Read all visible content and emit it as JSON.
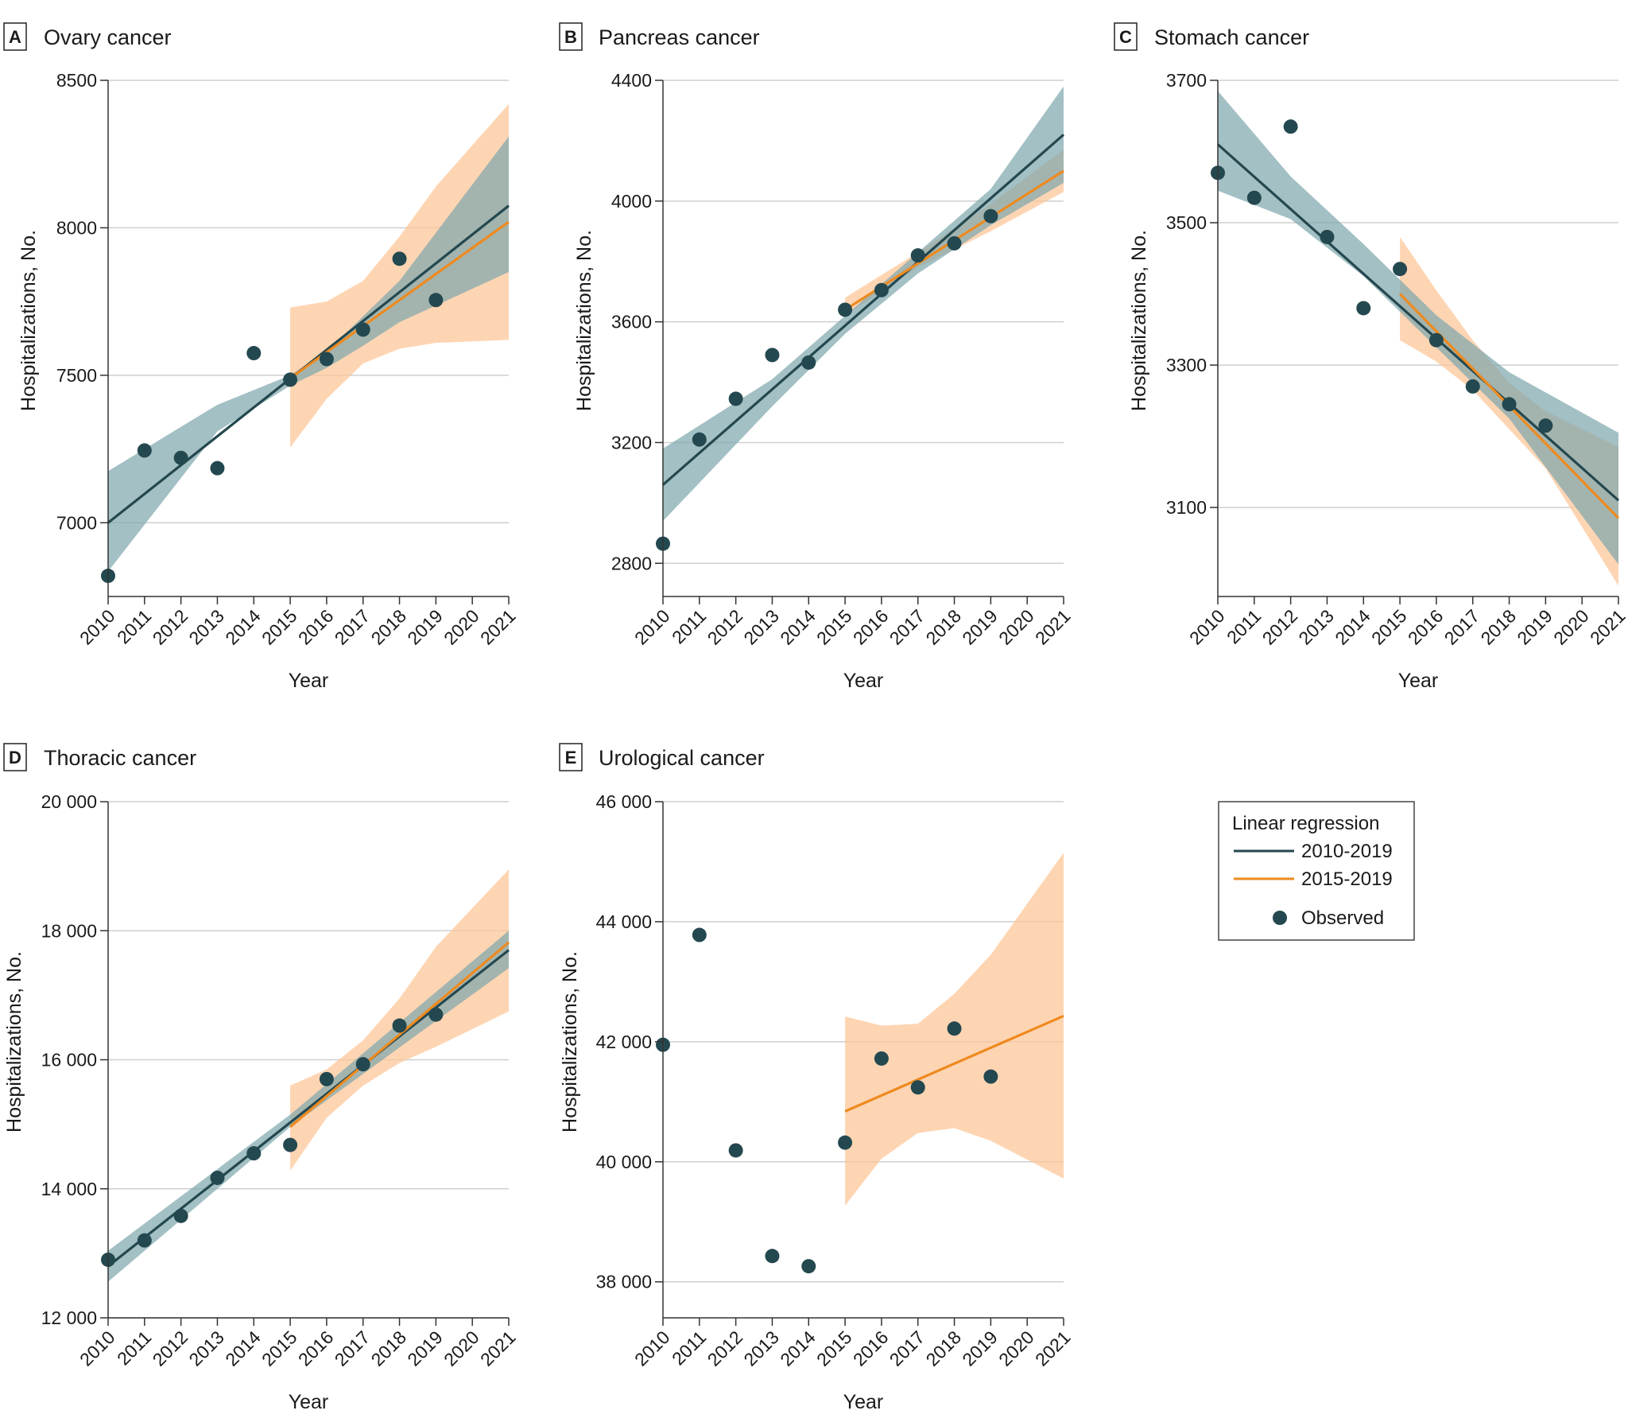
{
  "colors": {
    "line_2010_2019": "#24484f",
    "line_2015_2019": "#ee8a1f",
    "band_2010_2019": "#7fa7ad",
    "band_2015_2019": "#fdc596",
    "grid": "#cfcfcf",
    "axis": "#333333"
  },
  "legend": {
    "title": "Linear regression",
    "item_1": "2010-2019",
    "item_2": "2015-2019",
    "item_3": "Observed"
  },
  "chart_data": [
    {
      "id": "A",
      "type": "scatter",
      "title": "Ovary cancer",
      "xlabel": "Year",
      "ylabel": "Hospitalizations, No.",
      "xlim": [
        2010,
        2021
      ],
      "ylim": [
        6750,
        8500
      ],
      "yticks": [
        7000,
        7500,
        8000,
        8500
      ],
      "ytick_labels": [
        "7000",
        "7500",
        "8000",
        "8500"
      ],
      "xtick_labels": [
        "2010",
        "2011",
        "2012",
        "2013",
        "2014",
        "2015",
        "2016",
        "2017",
        "2018",
        "2019",
        "2020",
        "2021"
      ],
      "observed": {
        "x": [
          2010,
          2011,
          2012,
          2013,
          2014,
          2015,
          2016,
          2017,
          2018,
          2019
        ],
        "y": [
          6820,
          7245,
          7220,
          7185,
          7575,
          7485,
          7555,
          7655,
          7895,
          7755
        ]
      },
      "fit_2010_2019": {
        "start": [
          2010,
          7000
        ],
        "end": [
          2021,
          8075
        ]
      },
      "ci_2010_2019": {
        "x": [
          2010,
          2013,
          2015,
          2016,
          2017,
          2018,
          2021
        ],
        "lower": [
          6835,
          7310,
          7465,
          7525,
          7600,
          7680,
          7850
        ],
        "upper": [
          7175,
          7400,
          7500,
          7580,
          7700,
          7820,
          8310
        ]
      },
      "fit_2015_2019": {
        "start": [
          2015,
          7490
        ],
        "end": [
          2021,
          8020
        ]
      },
      "ci_2015_2019": {
        "x": [
          2015,
          2016,
          2017,
          2018,
          2019,
          2021
        ],
        "lower": [
          7255,
          7420,
          7540,
          7590,
          7610,
          7620
        ],
        "upper": [
          7730,
          7750,
          7820,
          7970,
          8140,
          8420
        ]
      }
    },
    {
      "id": "B",
      "type": "scatter",
      "title": "Pancreas cancer",
      "xlabel": "Year",
      "ylabel": "Hospitalizations, No.",
      "xlim": [
        2010,
        2021
      ],
      "ylim": [
        2690,
        4400
      ],
      "yticks": [
        2800,
        3200,
        3600,
        4000,
        4400
      ],
      "ytick_labels": [
        "2800",
        "3200",
        "3600",
        "4000",
        "4400"
      ],
      "xtick_labels": [
        "2010",
        "2011",
        "2012",
        "2013",
        "2014",
        "2015",
        "2016",
        "2017",
        "2018",
        "2019",
        "2020",
        "2021"
      ],
      "observed": {
        "x": [
          2010,
          2011,
          2012,
          2013,
          2014,
          2015,
          2016,
          2017,
          2018,
          2019
        ],
        "y": [
          2865,
          3210,
          3345,
          3490,
          3465,
          3640,
          3705,
          3820,
          3860,
          3950
        ]
      },
      "fit_2010_2019": {
        "start": [
          2010,
          3060
        ],
        "end": [
          2021,
          4220
        ]
      },
      "ci_2010_2019": {
        "x": [
          2010,
          2013,
          2015,
          2017,
          2019,
          2021
        ],
        "lower": [
          2940,
          3320,
          3560,
          3760,
          3920,
          4060
        ],
        "upper": [
          3180,
          3410,
          3620,
          3830,
          4040,
          4380
        ]
      },
      "fit_2015_2019": {
        "start": [
          2015,
          3640
        ],
        "end": [
          2021,
          4100
        ]
      },
      "ci_2015_2019": {
        "x": [
          2015,
          2017,
          2019,
          2021
        ],
        "lower": [
          3620,
          3780,
          3900,
          4030
        ],
        "upper": [
          3680,
          3830,
          3990,
          4170
        ]
      }
    },
    {
      "id": "C",
      "type": "scatter",
      "title": "Stomach cancer",
      "xlabel": "Year",
      "ylabel": "Hospitalizations, No.",
      "xlim": [
        2010,
        2021
      ],
      "ylim": [
        2975,
        3700
      ],
      "yticks": [
        3100,
        3300,
        3500,
        3700
      ],
      "ytick_labels": [
        "3100",
        "3300",
        "3500",
        "3700"
      ],
      "xtick_labels": [
        "2010",
        "2011",
        "2012",
        "2013",
        "2014",
        "2015",
        "2016",
        "2017",
        "2018",
        "2019",
        "2020",
        "2021"
      ],
      "observed": {
        "x": [
          2010,
          2011,
          2012,
          2013,
          2014,
          2015,
          2016,
          2017,
          2018,
          2019
        ],
        "y": [
          3570,
          3535,
          3635,
          3480,
          3380,
          3435,
          3335,
          3270,
          3245,
          3215
        ]
      },
      "fit_2010_2019": {
        "start": [
          2010,
          3610
        ],
        "end": [
          2021,
          3110
        ]
      },
      "ci_2010_2019": {
        "x": [
          2010,
          2012,
          2014,
          2016,
          2018,
          2021
        ],
        "lower": [
          3545,
          3505,
          3425,
          3325,
          3225,
          3020
        ],
        "upper": [
          3685,
          3565,
          3470,
          3370,
          3290,
          3205
        ]
      },
      "fit_2015_2019": {
        "start": [
          2015,
          3400
        ],
        "end": [
          2021,
          3085
        ]
      },
      "ci_2015_2019": {
        "x": [
          2015,
          2016,
          2017,
          2018,
          2019,
          2021
        ],
        "lower": [
          3335,
          3305,
          3265,
          3210,
          3155,
          2990
        ],
        "upper": [
          3480,
          3405,
          3335,
          3275,
          3235,
          3185
        ]
      }
    },
    {
      "id": "D",
      "type": "scatter",
      "title": "Thoracic cancer",
      "xlabel": "Year",
      "ylabel": "Hospitalizations, No.",
      "xlim": [
        2010,
        2021
      ],
      "ylim": [
        12000,
        20000
      ],
      "yticks": [
        12000,
        14000,
        16000,
        18000,
        20000
      ],
      "ytick_labels": [
        "12 000",
        "14 000",
        "16 000",
        "18 000",
        "20 000"
      ],
      "xtick_labels": [
        "2010",
        "2011",
        "2012",
        "2013",
        "2014",
        "2015",
        "2016",
        "2017",
        "2018",
        "2019",
        "2020",
        "2021"
      ],
      "observed": {
        "x": [
          2010,
          2011,
          2012,
          2013,
          2014,
          2015,
          2016,
          2017,
          2018,
          2019
        ],
        "y": [
          12900,
          13200,
          13580,
          14170,
          14550,
          14680,
          15700,
          15930,
          16530,
          16700
        ]
      },
      "fit_2010_2019": {
        "start": [
          2010,
          12800
        ],
        "end": [
          2021,
          17700
        ]
      },
      "ci_2010_2019": {
        "x": [
          2010,
          2015,
          2021
        ],
        "lower": [
          12560,
          14960,
          17420
        ],
        "upper": [
          13040,
          15150,
          18000
        ]
      },
      "fit_2015_2019": {
        "start": [
          2015,
          14960
        ],
        "end": [
          2021,
          17820
        ]
      },
      "ci_2015_2019": {
        "x": [
          2015,
          2016,
          2017,
          2018,
          2019,
          2021
        ],
        "lower": [
          14280,
          15100,
          15600,
          15950,
          16200,
          16750
        ],
        "upper": [
          15600,
          15850,
          16300,
          16950,
          17750,
          18950
        ]
      }
    },
    {
      "id": "E",
      "type": "scatter",
      "title": "Urological cancer",
      "xlabel": "Year",
      "ylabel": "Hospitalizations, No.",
      "xlim": [
        2010,
        2021
      ],
      "ylim": [
        37400,
        46000
      ],
      "yticks": [
        38000,
        40000,
        42000,
        44000,
        46000
      ],
      "ytick_labels": [
        "38 000",
        "40 000",
        "42 000",
        "44 000",
        "46 000"
      ],
      "xtick_labels": [
        "2010",
        "2011",
        "2012",
        "2013",
        "2014",
        "2015",
        "2016",
        "2017",
        "2018",
        "2019",
        "2020",
        "2021"
      ],
      "observed": {
        "x": [
          2010,
          2011,
          2012,
          2013,
          2014,
          2015,
          2016,
          2017,
          2018,
          2019
        ],
        "y": [
          41950,
          43780,
          40190,
          38430,
          38260,
          40320,
          41720,
          41240,
          42220,
          41420
        ]
      },
      "fit_2015_2019": {
        "start": [
          2015,
          40840
        ],
        "end": [
          2021,
          42430
        ]
      },
      "ci_2015_2019": {
        "x": [
          2015,
          2016,
          2017,
          2018,
          2019,
          2021
        ],
        "lower": [
          39270,
          40050,
          40480,
          40560,
          40350,
          39720
        ],
        "upper": [
          42420,
          42270,
          42300,
          42800,
          43450,
          45150
        ]
      }
    }
  ]
}
